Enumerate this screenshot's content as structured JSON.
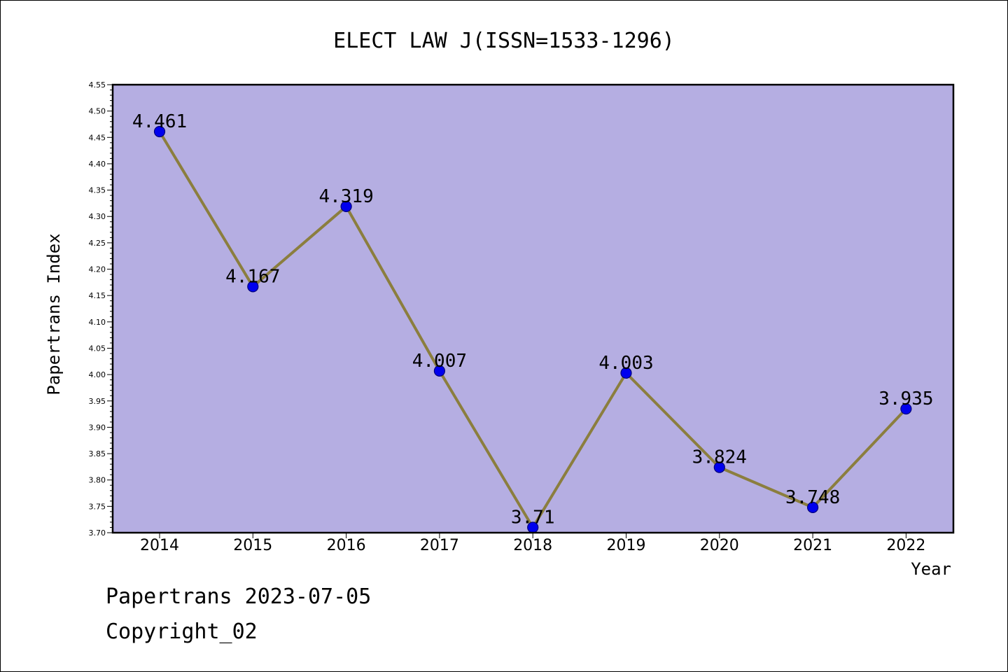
{
  "footer": {
    "date_line": "Papertrans 2023-07-05",
    "copyright_line": "Copyright_02"
  },
  "chart_data": {
    "type": "line",
    "title": "ELECT LAW J(ISSN=1533-1296)",
    "xlabel": "Year",
    "ylabel": "Papertrans Index",
    "categories": [
      "2014",
      "2015",
      "2016",
      "2017",
      "2018",
      "2019",
      "2020",
      "2021",
      "2022"
    ],
    "series": [
      {
        "values": [
          4.461,
          4.167,
          4.319,
          4.007,
          3.71,
          4.003,
          3.824,
          3.748,
          3.935
        ],
        "labels": [
          "4.461",
          "4.167",
          "4.319",
          "4.007",
          "3.71",
          "4.003",
          "3.824",
          "3.748",
          "3.935"
        ]
      }
    ],
    "ylim": [
      3.7,
      4.55
    ],
    "y_major_step": 0.05,
    "y_minor_step": 0.01,
    "y_tick_labels": [
      "3.70",
      "3.75",
      "3.80",
      "3.85",
      "3.90",
      "3.95",
      "4.00",
      "4.05",
      "4.10",
      "4.15",
      "4.20",
      "4.25",
      "4.30",
      "4.35",
      "4.40",
      "4.45",
      "4.50",
      "4.55"
    ],
    "grid": false,
    "legend": "none",
    "colors": {
      "plot_background": "#b5aee2",
      "line": "#8b7e3e",
      "marker": "#0000ee",
      "marker_edge": "#00007a",
      "frame": "#000000"
    }
  }
}
